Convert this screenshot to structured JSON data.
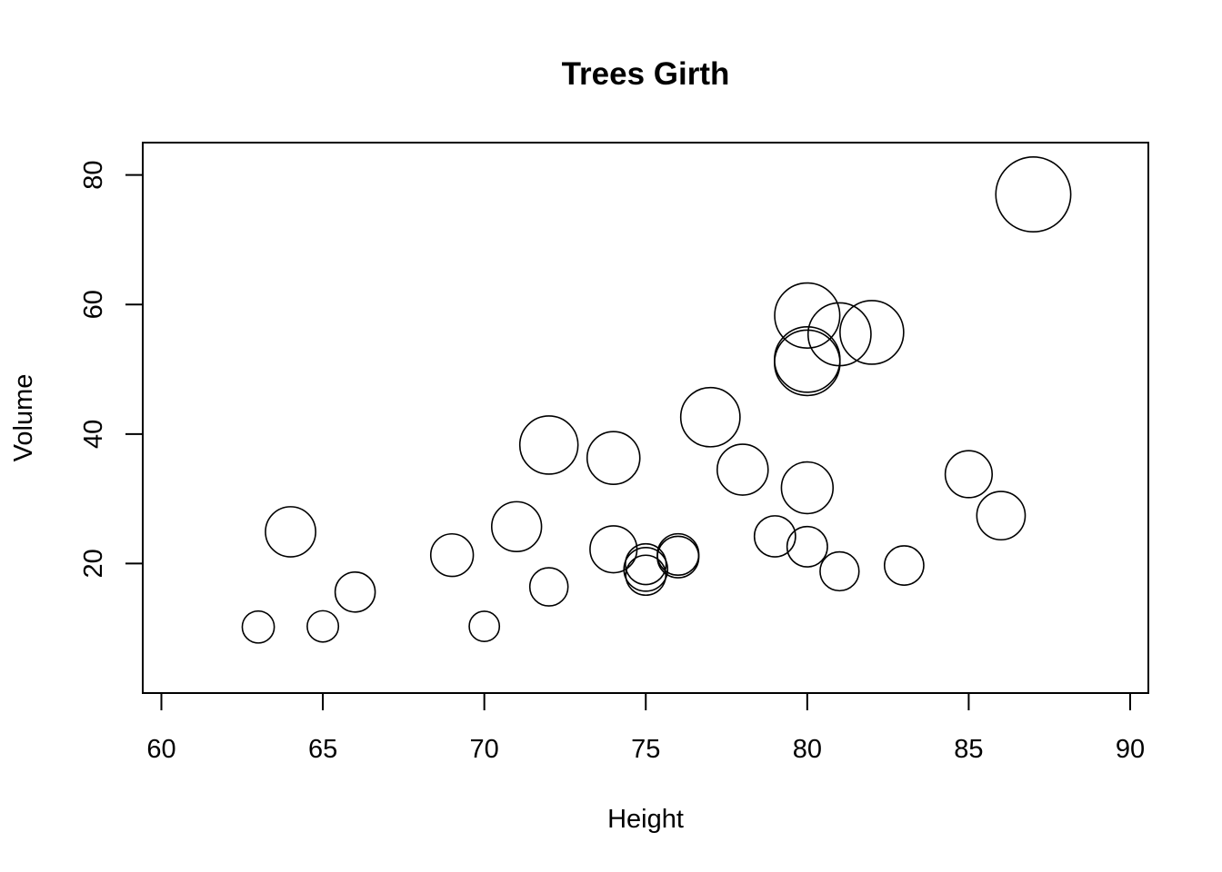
{
  "chart_data": {
    "type": "scatter",
    "title": "Trees Girth",
    "xlabel": "Height",
    "ylabel": "Volume",
    "xlim": [
      60,
      90
    ],
    "ylim": [
      0,
      85
    ],
    "xticks": [
      60,
      65,
      70,
      75,
      80,
      85,
      90
    ],
    "yticks": [
      20,
      40,
      60,
      80
    ],
    "grid": false,
    "legend": "none",
    "marker": "open-circle",
    "size_variable": "Girth",
    "colors": {
      "stroke": "#000000",
      "background": "#ffffff"
    },
    "points": [
      {
        "x": 70,
        "y": 10.3,
        "size": 8.3
      },
      {
        "x": 65,
        "y": 10.3,
        "size": 8.6
      },
      {
        "x": 63,
        "y": 10.2,
        "size": 8.8
      },
      {
        "x": 72,
        "y": 16.4,
        "size": 10.5
      },
      {
        "x": 81,
        "y": 18.8,
        "size": 10.7
      },
      {
        "x": 83,
        "y": 19.7,
        "size": 10.8
      },
      {
        "x": 66,
        "y": 15.6,
        "size": 11.0
      },
      {
        "x": 75,
        "y": 18.2,
        "size": 11.0
      },
      {
        "x": 80,
        "y": 22.6,
        "size": 11.1
      },
      {
        "x": 75,
        "y": 19.9,
        "size": 11.2
      },
      {
        "x": 79,
        "y": 24.2,
        "size": 11.3
      },
      {
        "x": 76,
        "y": 21.0,
        "size": 11.4
      },
      {
        "x": 76,
        "y": 21.4,
        "size": 11.4
      },
      {
        "x": 69,
        "y": 21.3,
        "size": 11.7
      },
      {
        "x": 75,
        "y": 19.1,
        "size": 12.0
      },
      {
        "x": 74,
        "y": 22.2,
        "size": 12.9
      },
      {
        "x": 85,
        "y": 33.8,
        "size": 12.9
      },
      {
        "x": 86,
        "y": 27.4,
        "size": 13.3
      },
      {
        "x": 71,
        "y": 25.7,
        "size": 13.7
      },
      {
        "x": 64,
        "y": 24.9,
        "size": 13.8
      },
      {
        "x": 78,
        "y": 34.5,
        "size": 14.0
      },
      {
        "x": 80,
        "y": 31.7,
        "size": 14.2
      },
      {
        "x": 74,
        "y": 36.3,
        "size": 14.5
      },
      {
        "x": 72,
        "y": 38.3,
        "size": 16.0
      },
      {
        "x": 77,
        "y": 42.6,
        "size": 16.3
      },
      {
        "x": 81,
        "y": 55.4,
        "size": 17.3
      },
      {
        "x": 82,
        "y": 55.7,
        "size": 17.5
      },
      {
        "x": 80,
        "y": 58.3,
        "size": 17.9
      },
      {
        "x": 80,
        "y": 51.5,
        "size": 18.0
      },
      {
        "x": 80,
        "y": 51.0,
        "size": 18.0
      },
      {
        "x": 87,
        "y": 77.0,
        "size": 20.6
      }
    ]
  }
}
